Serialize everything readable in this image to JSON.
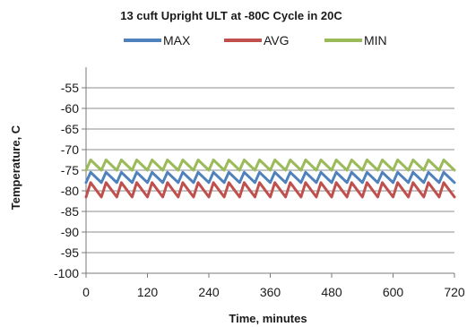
{
  "chart_data": {
    "type": "line",
    "title": "13 cuft Upright ULT at -80C Cycle in 20C",
    "xlabel": "Time, minutes",
    "ylabel": "Temperature, C",
    "xlim": [
      0,
      720
    ],
    "ylim": [
      -100,
      -50
    ],
    "xticks": [
      0,
      120,
      240,
      360,
      480,
      600,
      720
    ],
    "yticks": [
      -55,
      -60,
      -65,
      -70,
      -75,
      -80,
      -85,
      -90,
      -95,
      -100
    ],
    "grid": "horizontal",
    "legend": "top-center",
    "series": [
      {
        "name": "MAX",
        "color": "#4f81bd",
        "cycle_minutes": 30,
        "values_low": -78,
        "values_high": -75.5
      },
      {
        "name": "AVG",
        "color": "#c0504d",
        "cycle_minutes": 30,
        "values_low": -81.5,
        "values_high": -78
      },
      {
        "name": "MIN",
        "color": "#9bbb59",
        "cycle_minutes": 30,
        "values_low": -75,
        "values_high": -72.5
      }
    ]
  }
}
